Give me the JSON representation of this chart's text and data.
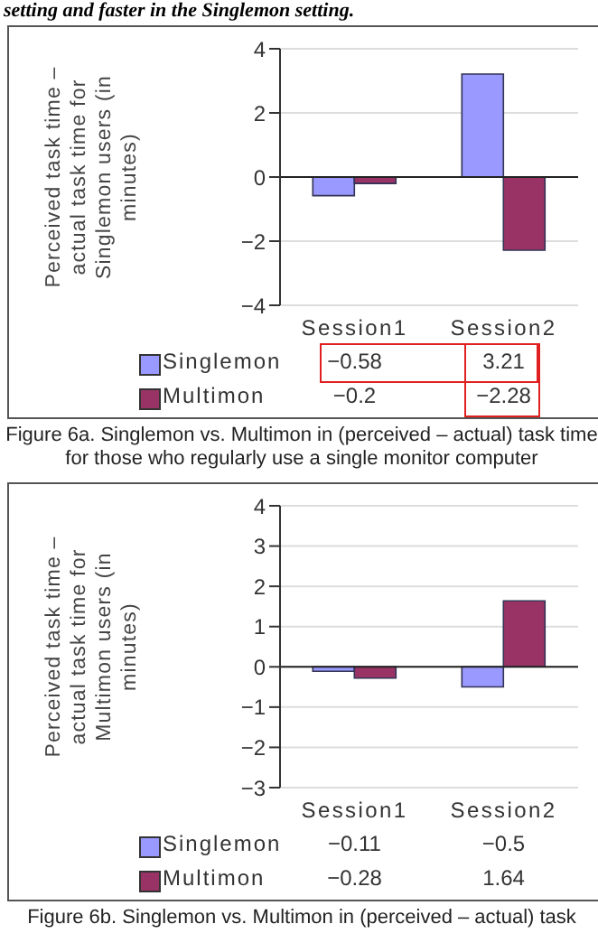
{
  "chart_data": [
    {
      "type": "bar",
      "ylabel": "Perceived task time – actual task time for Singlemon users (in minutes)",
      "categories": [
        "Session1",
        "Session2"
      ],
      "series": [
        {
          "name": "Singlemon",
          "color": "#9999ff",
          "values": [
            -0.58,
            3.21
          ],
          "value_labels": [
            "−0.58",
            "3.21"
          ]
        },
        {
          "name": "Multimon",
          "color": "#993366",
          "values": [
            -0.2,
            -2.28
          ],
          "value_labels": [
            "−0.2",
            "−2.28"
          ]
        }
      ],
      "ylim": [
        -4,
        4
      ],
      "yticks": [
        -4,
        -2,
        0,
        2,
        4
      ],
      "grid": "y",
      "legend": "bottom",
      "annotations": [
        "setting and faster in the Singlemon setting.",
        "Figure 6a. Singlemon vs. Multimon in (perceived – actual) task time for those who regularly use a single monitor computer"
      ]
    },
    {
      "type": "bar",
      "ylabel": "Perceived task time – actual task time for Multimon users (in minutes)",
      "categories": [
        "Session1",
        "Session2"
      ],
      "series": [
        {
          "name": "Singlemon",
          "color": "#9999ff",
          "values": [
            -0.11,
            -0.5
          ],
          "value_labels": [
            "−0.11",
            "−0.5"
          ]
        },
        {
          "name": "Multimon",
          "color": "#993366",
          "values": [
            -0.28,
            1.64
          ],
          "value_labels": [
            "−0.28",
            "1.64"
          ]
        }
      ],
      "ylim": [
        -3,
        4
      ],
      "yticks": [
        -3,
        -2,
        -1,
        0,
        1,
        2,
        3,
        4
      ],
      "grid": "y",
      "legend": "bottom",
      "annotations": [
        "Figure 6b. Singlemon vs. Multimon in (perceived – actual) task"
      ]
    }
  ]
}
